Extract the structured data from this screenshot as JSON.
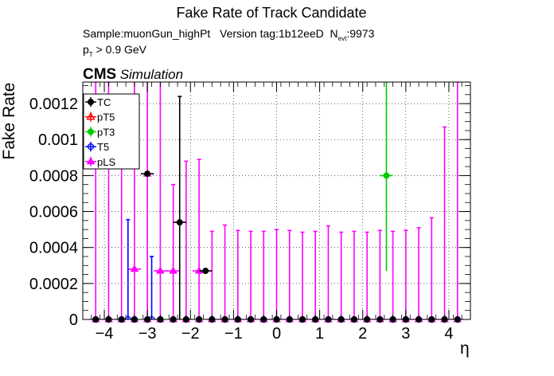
{
  "chart_data": {
    "type": "scatter",
    "title": "Fake Rate of Track Candidate",
    "subtitle": {
      "sample": "Sample:muonGun_highPt",
      "version": "Version tag:1b12eeD",
      "nevt_label": "N",
      "nevt_sub": "evt",
      "nevt_value": ":9973",
      "pt_label": "p",
      "pt_sub": "T",
      "pt_cut": " > 0.9 GeV"
    },
    "cms_label": "CMS",
    "simulation_label": "Simulation",
    "xlabel": "η",
    "ylabel": "Fake Rate",
    "xlim": [
      -4.5,
      4.5
    ],
    "ylim": [
      0,
      0.00132
    ],
    "xticks": [
      -4,
      -3,
      -2,
      -1,
      0,
      1,
      2,
      3,
      4
    ],
    "xtick_labels": [
      "−4",
      "−3",
      "−2",
      "−1",
      "0",
      "1",
      "2",
      "3",
      "4"
    ],
    "yticks": [
      0,
      0.0002,
      0.0004,
      0.0006,
      0.0008,
      0.001,
      0.0012
    ],
    "ytick_labels": [
      "0",
      "0.0002",
      "0.0004",
      "0.0006",
      "0.0008",
      "0.001",
      "0.0012"
    ],
    "grid": true,
    "legend_position": "top-left",
    "bins": [
      -4.2,
      -3.9,
      -3.6,
      -3.3,
      -3.0,
      -2.7,
      -2.4,
      -2.1,
      -1.8,
      -1.5,
      -1.2,
      -0.9,
      -0.6,
      -0.3,
      0.0,
      0.3,
      0.6,
      0.9,
      1.2,
      1.5,
      1.8,
      2.1,
      2.4,
      2.7,
      3.0,
      3.3,
      3.6,
      3.9,
      4.2
    ],
    "series": [
      {
        "name": "TC",
        "color": "#000000",
        "marker": "circle-filled",
        "points": [
          {
            "x": -3.0,
            "y": 0.00081,
            "err": 0.0
          },
          {
            "x": -2.25,
            "y": 0.00054,
            "err": 0.0007
          },
          {
            "x": -1.65,
            "y": 0.00027,
            "err": 0.0
          }
        ]
      },
      {
        "name": "pT5",
        "color": "#ff0000",
        "marker": "triangle-open",
        "points": []
      },
      {
        "name": "pT3",
        "color": "#00cc00",
        "marker": "circle-filled",
        "points": [
          {
            "x": 2.55,
            "y": 0.0008,
            "err": 0.00053
          }
        ]
      },
      {
        "name": "T5",
        "color": "#0000ff",
        "marker": "circle-open",
        "points": [
          {
            "x": -3.45,
            "y": 0.0,
            "err": 0.000555
          },
          {
            "x": -2.9,
            "y": 0.0,
            "err": 0.00035
          }
        ]
      },
      {
        "name": "pLS",
        "color": "#ff00ff",
        "marker": "triangle-filled",
        "points": [
          {
            "x": -4.2,
            "y": 0.0,
            "err": 0.00132
          },
          {
            "x": -3.9,
            "y": 0.0,
            "err": 0.00132
          },
          {
            "x": -3.6,
            "y": 0.0,
            "err": 0.00108
          },
          {
            "x": -3.3,
            "y": 0.00028,
            "err": 0.00132
          },
          {
            "x": -3.0,
            "y": 0.00081,
            "err": 0.00132
          },
          {
            "x": -2.7,
            "y": 0.00027,
            "err": 0.00132
          },
          {
            "x": -2.4,
            "y": 0.00027,
            "err": 0.00048
          },
          {
            "x": -2.1,
            "y": 0.0,
            "err": 0.00088
          },
          {
            "x": -1.8,
            "y": 0.00027,
            "err": 0.00062
          },
          {
            "x": -1.5,
            "y": 0.0,
            "err": 0.00049
          },
          {
            "x": -1.2,
            "y": 0.0,
            "err": 0.000525
          },
          {
            "x": -0.9,
            "y": 0.0,
            "err": 0.000495
          },
          {
            "x": -0.6,
            "y": 0.0,
            "err": 0.00049
          },
          {
            "x": -0.3,
            "y": 0.0,
            "err": 0.00049
          },
          {
            "x": 0.0,
            "y": 0.0,
            "err": 0.0005
          },
          {
            "x": 0.3,
            "y": 0.0,
            "err": 0.000495
          },
          {
            "x": 0.6,
            "y": 0.0,
            "err": 0.000485
          },
          {
            "x": 0.9,
            "y": 0.0,
            "err": 0.00049
          },
          {
            "x": 1.2,
            "y": 0.0,
            "err": 0.00052
          },
          {
            "x": 1.5,
            "y": 0.0,
            "err": 0.000485
          },
          {
            "x": 1.8,
            "y": 0.0,
            "err": 0.00049
          },
          {
            "x": 2.1,
            "y": 0.0,
            "err": 0.000485
          },
          {
            "x": 2.4,
            "y": 0.0,
            "err": 0.000495
          },
          {
            "x": 2.7,
            "y": 0.0,
            "err": 0.00049
          },
          {
            "x": 3.0,
            "y": 0.0,
            "err": 0.000495
          },
          {
            "x": 3.3,
            "y": 0.0,
            "err": 0.00051
          },
          {
            "x": 3.6,
            "y": 0.0,
            "err": 0.000565
          },
          {
            "x": 3.9,
            "y": 0.0,
            "err": 0.00107
          },
          {
            "x": 4.2,
            "y": 0.0,
            "err": 0.00132
          }
        ]
      }
    ]
  }
}
